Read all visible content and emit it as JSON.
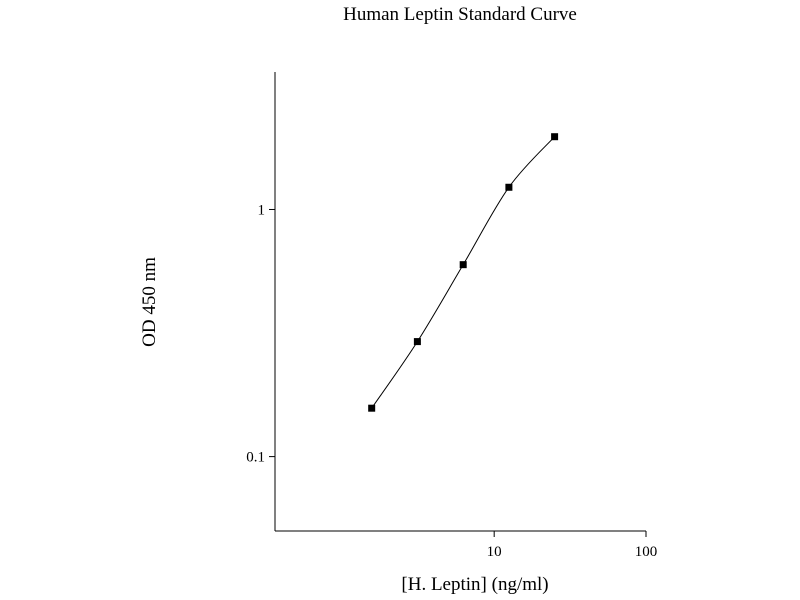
{
  "chart_data": {
    "type": "line",
    "title": "Human Leptin Standard Curve",
    "xlabel": "[H. Leptin] (ng/ml)",
    "ylabel": "OD 450 nm",
    "xscale": "log",
    "yscale": "log",
    "xlim": [
      0.36,
      100
    ],
    "ylim": [
      0.05,
      3.6
    ],
    "x_ticks": [
      {
        "value": 10,
        "label": "10"
      },
      {
        "value": 100,
        "label": "100"
      }
    ],
    "y_ticks": [
      {
        "value": 0.1,
        "label": "0.1"
      },
      {
        "value": 1,
        "label": "1"
      }
    ],
    "grid": false,
    "legend": "none",
    "marker": "square",
    "color": "#000000",
    "series": [
      {
        "x": [
          1.56,
          3.12,
          6.25,
          12.5,
          25
        ],
        "y": [
          0.157,
          0.292,
          0.598,
          1.23,
          1.97
        ]
      }
    ]
  }
}
